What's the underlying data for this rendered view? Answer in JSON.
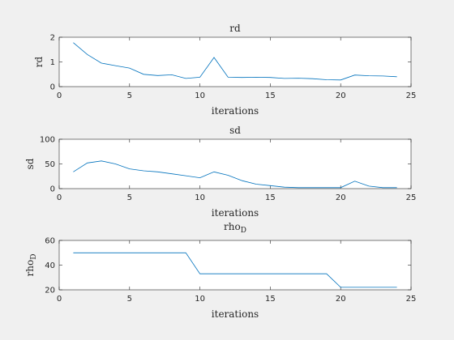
{
  "figure": {
    "background": "#f0f0f0",
    "axes_color": "#262626",
    "line_color": "#0072bd"
  },
  "chart_data": [
    {
      "type": "line",
      "title": "rd",
      "title_sub": "",
      "xlabel": "iterations",
      "ylabel": "rd",
      "ylabel_sub": "",
      "xlim": [
        0,
        25
      ],
      "ylim": [
        0,
        2
      ],
      "xticks": [
        "0",
        "5",
        "10",
        "15",
        "20",
        "25"
      ],
      "yticks": [
        "0",
        "1",
        "2"
      ],
      "grid": false,
      "series": [
        {
          "x": [
            1,
            2,
            3,
            4,
            5,
            6,
            7,
            8,
            9,
            10,
            11,
            12,
            13,
            14,
            15,
            16,
            17,
            18,
            19,
            20,
            21,
            22,
            23,
            24
          ],
          "values": [
            1.78,
            1.3,
            0.95,
            0.85,
            0.75,
            0.5,
            0.45,
            0.48,
            0.33,
            0.38,
            1.18,
            0.38,
            0.37,
            0.38,
            0.37,
            0.33,
            0.34,
            0.32,
            0.28,
            0.27,
            0.47,
            0.44,
            0.43,
            0.4
          ]
        }
      ]
    },
    {
      "type": "line",
      "title": "sd",
      "title_sub": "",
      "xlabel": "iterations",
      "ylabel": "sd",
      "ylabel_sub": "",
      "xlim": [
        0,
        25
      ],
      "ylim": [
        0,
        100
      ],
      "xticks": [
        "0",
        "5",
        "10",
        "15",
        "20",
        "25"
      ],
      "yticks": [
        "0",
        "50",
        "100"
      ],
      "grid": false,
      "series": [
        {
          "x": [
            1,
            2,
            3,
            4,
            5,
            6,
            7,
            8,
            9,
            10,
            11,
            12,
            13,
            14,
            15,
            16,
            17,
            18,
            19,
            20,
            21,
            22,
            23,
            24
          ],
          "values": [
            34,
            52,
            56,
            50,
            40,
            36,
            34,
            30,
            26,
            22,
            34,
            27,
            16,
            9,
            6,
            3,
            2,
            2,
            2,
            2,
            15,
            5,
            2,
            2
          ]
        }
      ]
    },
    {
      "type": "line",
      "title": "rho",
      "title_sub": "D",
      "xlabel": "iterations",
      "ylabel": "rho",
      "ylabel_sub": "D",
      "xlim": [
        0,
        25
      ],
      "ylim": [
        20,
        60
      ],
      "xticks": [
        "0",
        "5",
        "10",
        "15",
        "20",
        "25"
      ],
      "yticks": [
        "20",
        "40",
        "60"
      ],
      "grid": false,
      "series": [
        {
          "x": [
            1,
            9,
            10,
            19,
            20,
            24
          ],
          "values": [
            50,
            50,
            33,
            33,
            22,
            22
          ]
        }
      ]
    }
  ]
}
